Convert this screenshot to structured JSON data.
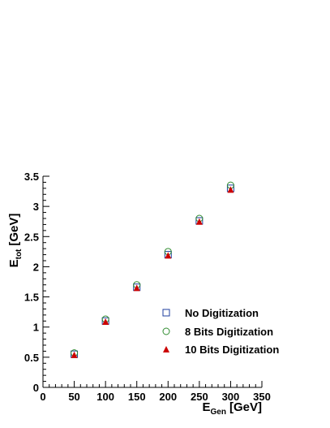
{
  "chart_data": {
    "type": "scatter",
    "xlabel": {
      "main": "E",
      "sub": "Gen",
      "unit": "[GeV]"
    },
    "ylabel": {
      "main": "E",
      "sub": "tot",
      "unit": "[GeV]"
    },
    "xlim": [
      0,
      350
    ],
    "ylim": [
      0,
      3.5
    ],
    "xticks": [
      "0",
      "50",
      "100",
      "150",
      "200",
      "250",
      "300",
      "350"
    ],
    "yticks": [
      "0",
      "0.5",
      "1",
      "1.5",
      "2",
      "2.5",
      "3",
      "3.5"
    ],
    "grid": false,
    "legend_position": "bottom-right",
    "x": [
      50,
      100,
      150,
      200,
      250,
      300
    ],
    "series": [
      {
        "name": "No Digitization",
        "marker": "square-open",
        "color": "#1f3f9f",
        "values": [
          0.55,
          1.1,
          1.66,
          2.2,
          2.76,
          3.3
        ]
      },
      {
        "name": "8 Bits Digitization",
        "marker": "circle-open",
        "color": "#2e8b2e",
        "values": [
          0.57,
          1.13,
          1.7,
          2.25,
          2.8,
          3.35
        ]
      },
      {
        "name": "10 Bits Digitization",
        "marker": "triangle-filled",
        "color": "#cc0000",
        "values": [
          0.54,
          1.09,
          1.65,
          2.19,
          2.75,
          3.28
        ]
      }
    ]
  }
}
